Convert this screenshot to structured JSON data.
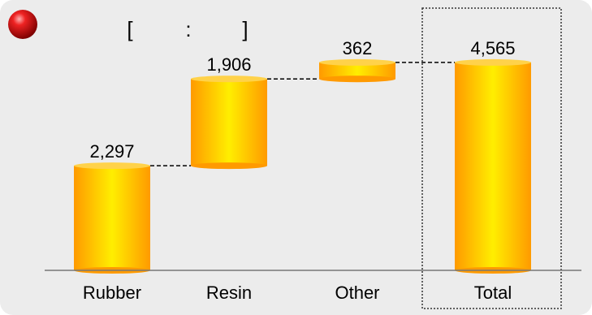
{
  "header": {
    "bracket_open": "[",
    "separator": ":",
    "bracket_close": "]"
  },
  "colors": {
    "panel_background": "#ececec",
    "bar_edge": "#ff9e00",
    "bar_center": "#ffee00",
    "bar_top": "#ffd24a",
    "connector": "#000000",
    "axis": "#777777",
    "highlight_box": "#333333",
    "bullet": "#e31b1b"
  },
  "chart_data": {
    "type": "bar",
    "subtype": "waterfall",
    "categories": [
      "Rubber",
      "Resin",
      "Other",
      "Total"
    ],
    "values": [
      2297,
      1906,
      362,
      4565
    ],
    "value_labels": [
      "2,297",
      "1,906",
      "362",
      "4,565"
    ],
    "bar_kind": [
      "increment",
      "increment",
      "increment",
      "total"
    ],
    "highlighted_category": "Total",
    "title": "",
    "xlabel": "",
    "ylabel": "",
    "ylim": [
      0,
      5500
    ],
    "grid": false,
    "legend": "none"
  }
}
